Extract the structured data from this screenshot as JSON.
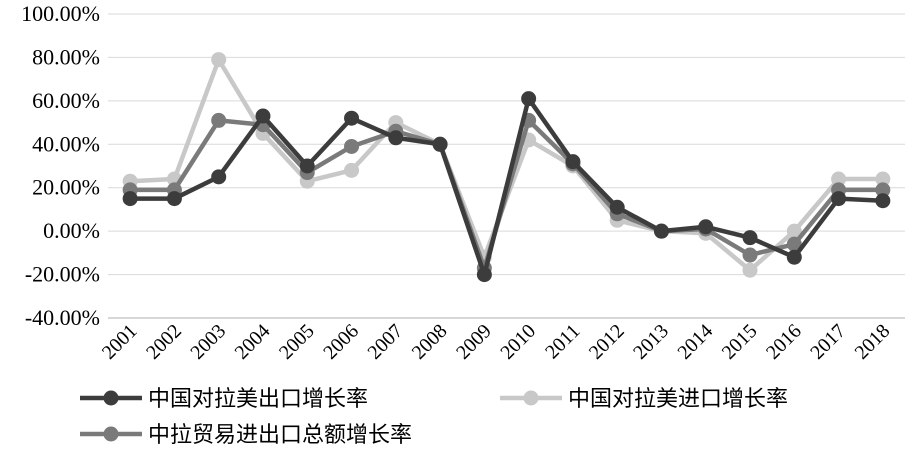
{
  "chart_data": {
    "type": "line",
    "categories": [
      "2001",
      "2002",
      "2003",
      "2004",
      "2005",
      "2006",
      "2007",
      "2008",
      "2009",
      "2010",
      "2011",
      "2012",
      "2013",
      "2014",
      "2015",
      "2016",
      "2017",
      "2018"
    ],
    "series": [
      {
        "name": "中国对拉美出口增长率",
        "color": "#3c3c3c",
        "values": [
          15,
          15,
          25,
          53,
          30,
          52,
          43,
          40,
          -20,
          61,
          32,
          11,
          0,
          2,
          -3,
          -12,
          15,
          14
        ]
      },
      {
        "name": "中国对拉美进口增长率",
        "color": "#c8c8c8",
        "values": [
          23,
          24,
          79,
          45,
          23,
          28,
          50,
          40,
          -12,
          42,
          30,
          5,
          0,
          -1,
          -18,
          0,
          24,
          24
        ]
      },
      {
        "name": "中拉贸易进出口总额增长率",
        "color": "#7a7a7a",
        "values": [
          19,
          19,
          51,
          49,
          27,
          39,
          46,
          40,
          -17,
          51,
          31,
          8,
          0,
          1,
          -11,
          -6,
          19,
          19
        ]
      }
    ],
    "yticks": [
      "100.00%",
      "80.00%",
      "60.00%",
      "40.00%",
      "20.00%",
      "0.00%",
      "-20.00%",
      "-40.00%"
    ],
    "ylim": [
      -40,
      100
    ],
    "grid": true,
    "legend": "bottom"
  }
}
